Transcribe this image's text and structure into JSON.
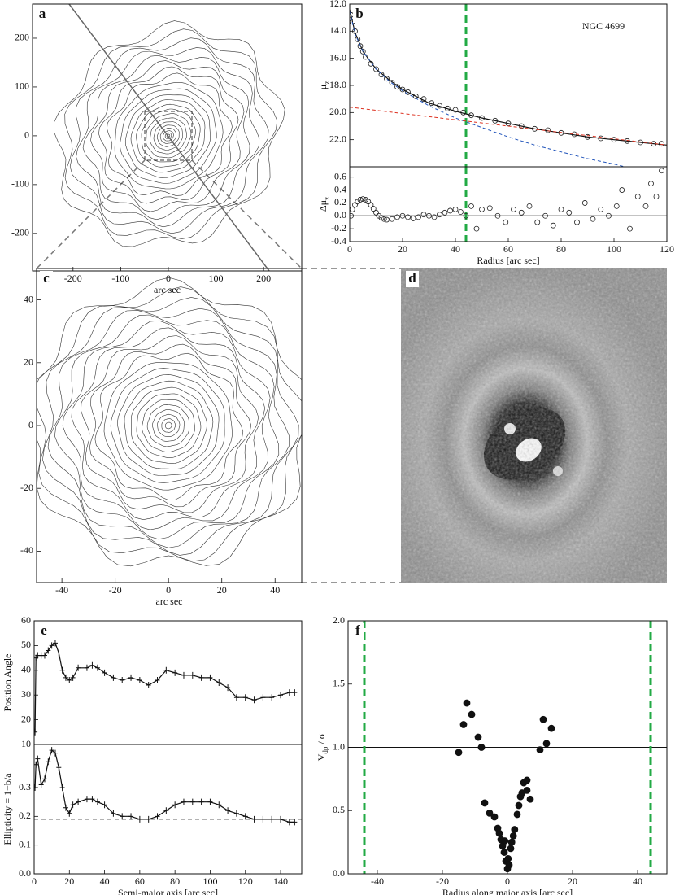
{
  "chart_data": [
    {
      "type": "contour",
      "label": "a",
      "xlabel": "arc sec",
      "xlim": [
        -285,
        280
      ],
      "ylim": [
        -277,
        270
      ],
      "xticks": [
        -200,
        -100,
        0,
        100,
        200
      ],
      "yticks": [
        -200,
        -100,
        0,
        100,
        200
      ]
    },
    {
      "type": "scatter",
      "label": "b",
      "annotation": "NGC 4699",
      "ylabel": [
        "μ",
        "z"
      ],
      "xlim": [
        0,
        120
      ],
      "ylim": [
        24,
        12
      ],
      "yticks": [
        {
          "value": 12,
          "label": "12.0"
        },
        {
          "value": 14,
          "label": "14.0"
        },
        {
          "value": 16,
          "label": "16.0"
        },
        {
          "value": 18,
          "label": "18.0"
        },
        {
          "value": 20,
          "label": "20.0"
        },
        {
          "value": 22,
          "label": "22.0"
        }
      ],
      "series": [
        {
          "marker": "circle-open",
          "color": "#222222",
          "x": [
            0.5,
            1,
            2,
            3,
            4,
            5,
            6,
            8,
            10,
            12,
            14,
            16,
            18,
            20,
            22,
            25,
            28,
            31,
            34,
            37,
            40,
            43,
            46,
            50,
            55,
            60,
            65,
            70,
            75,
            80,
            85,
            90,
            95,
            100,
            105,
            110,
            115,
            118
          ],
          "values": [
            12.8,
            13.3,
            14.0,
            14.6,
            15.1,
            15.5,
            15.9,
            16.4,
            16.8,
            17.2,
            17.5,
            17.8,
            18.1,
            18.3,
            18.5,
            18.8,
            19.0,
            19.3,
            19.5,
            19.7,
            19.8,
            20.0,
            20.2,
            20.4,
            20.6,
            20.8,
            21.0,
            21.2,
            21.3,
            21.5,
            21.6,
            21.8,
            21.9,
            22.0,
            22.1,
            22.2,
            22.3,
            22.3
          ]
        },
        {
          "line": "solid",
          "color": "#111111",
          "x": [
            0,
            2,
            5,
            10,
            15,
            20,
            30,
            40,
            50,
            60,
            70,
            80,
            90,
            100,
            110,
            120
          ],
          "values": [
            12.4,
            14.1,
            15.5,
            16.8,
            17.6,
            18.3,
            19.3,
            19.9,
            20.4,
            20.8,
            21.2,
            21.5,
            21.8,
            22.0,
            22.2,
            22.4
          ]
        },
        {
          "line": "dashed",
          "color": "#2255bb",
          "x": [
            0,
            2,
            5,
            10,
            15,
            20,
            30,
            40,
            50,
            60,
            70,
            80,
            90,
            100,
            104
          ],
          "values": [
            12.5,
            14.2,
            15.5,
            16.8,
            17.7,
            18.4,
            19.5,
            20.4,
            21.1,
            21.8,
            22.4,
            22.9,
            23.4,
            23.8,
            24.0
          ]
        },
        {
          "line": "dashed",
          "color": "#dd3322",
          "x": [
            0,
            120
          ],
          "values": [
            19.6,
            22.4
          ]
        }
      ],
      "vlines": [
        {
          "x": 44,
          "color": "#22aa44"
        }
      ]
    },
    {
      "type": "scatter",
      "ylabel": [
        "Δμ",
        "z"
      ],
      "xlabel": "Radius [arc sec]",
      "xlim": [
        0,
        120
      ],
      "ylim": [
        -0.4,
        0.76
      ],
      "xticks": [
        0,
        20,
        40,
        60,
        80,
        100,
        120
      ],
      "yticks": [
        -0.4,
        -0.2,
        {
          "value": 0,
          "label": "0.0"
        },
        0.2,
        0.4,
        0.6
      ],
      "series": [
        {
          "marker": "circle-open",
          "color": "#222222",
          "x": [
            0.5,
            1,
            2,
            3,
            4,
            5,
            6,
            7,
            8,
            9,
            10,
            11,
            12,
            13,
            14,
            16,
            18,
            20,
            22,
            24,
            26,
            28,
            30,
            32,
            34,
            36,
            38,
            40,
            42,
            44,
            46,
            48,
            50,
            53,
            56,
            59,
            62,
            65,
            68,
            71,
            74,
            77,
            80,
            83,
            86,
            89,
            92,
            95,
            98,
            101,
            103,
            106,
            109,
            112,
            114,
            116,
            118
          ],
          "values": [
            0.0,
            0.1,
            0.17,
            0.22,
            0.25,
            0.26,
            0.25,
            0.22,
            0.17,
            0.11,
            0.05,
            0.0,
            -0.03,
            -0.05,
            -0.06,
            -0.05,
            -0.02,
            0.0,
            -0.02,
            -0.04,
            -0.02,
            0.02,
            0.0,
            -0.02,
            0.02,
            0.05,
            0.08,
            0.1,
            0.06,
            0.0,
            0.15,
            -0.2,
            0.1,
            0.12,
            0.0,
            -0.1,
            0.1,
            0.05,
            0.15,
            -0.1,
            0.0,
            -0.15,
            0.1,
            0.05,
            -0.1,
            0.2,
            -0.05,
            0.1,
            0.0,
            0.15,
            0.4,
            -0.2,
            0.3,
            0.15,
            0.5,
            0.3,
            0.7
          ]
        }
      ],
      "hlines": [
        {
          "y": 0,
          "color": "#111111"
        }
      ],
      "vlines": [
        {
          "x": 44,
          "color": "#22aa44"
        }
      ]
    },
    {
      "type": "contour",
      "label": "c",
      "xlabel": "arc sec",
      "xlim": [
        -49.5,
        50
      ],
      "ylim": [
        -50,
        50
      ],
      "xticks": [
        -40,
        -20,
        0,
        20,
        40
      ],
      "yticks": [
        -40,
        -20,
        0,
        20,
        40
      ]
    },
    {
      "type": "image",
      "label": "d"
    },
    {
      "type": "scatter",
      "label": "e",
      "ylabel": [
        "Position Angle"
      ],
      "xlim": [
        0,
        152
      ],
      "ylim": [
        10,
        60
      ],
      "yticks": [
        10,
        20,
        30,
        40,
        50,
        60
      ],
      "series": [
        {
          "marker": "plus",
          "line": "solid",
          "color": "#111111",
          "x": [
            0.5,
            1,
            2,
            4,
            6,
            8,
            10,
            12,
            14,
            16,
            18,
            20,
            22,
            25,
            30,
            33,
            36,
            40,
            45,
            50,
            55,
            60,
            65,
            70,
            75,
            80,
            85,
            90,
            95,
            100,
            105,
            110,
            115,
            120,
            125,
            130,
            135,
            140,
            145,
            148
          ],
          "values": [
            15,
            45,
            46,
            46,
            46,
            48,
            50,
            51,
            47,
            40,
            37,
            36,
            37,
            41,
            41,
            42,
            41,
            39,
            37,
            36,
            37,
            36,
            34,
            36,
            40,
            39,
            38,
            38,
            37,
            37,
            35,
            33,
            29,
            29,
            28,
            29,
            29,
            30,
            31,
            31
          ]
        }
      ]
    },
    {
      "type": "scatter",
      "ylabel": [
        "Ellipticity = 1−b/a"
      ],
      "xlabel": "Semi-major axis [arc sec]",
      "xlim": [
        0,
        152
      ],
      "ylim": [
        0,
        0.45
      ],
      "xticks": [
        0,
        20,
        40,
        60,
        80,
        100,
        120,
        140
      ],
      "yticks": [
        {
          "value": 0,
          "label": "0.0"
        },
        0.1,
        0.2,
        0.3
      ],
      "series": [
        {
          "marker": "plus",
          "line": "solid",
          "color": "#111111",
          "x": [
            0.5,
            1,
            2,
            4,
            6,
            8,
            10,
            12,
            14,
            16,
            18,
            20,
            22,
            25,
            30,
            33,
            36,
            40,
            45,
            50,
            55,
            60,
            65,
            70,
            75,
            80,
            85,
            90,
            95,
            100,
            105,
            110,
            115,
            120,
            125,
            130,
            135,
            140,
            145,
            148
          ],
          "values": [
            0.3,
            0.38,
            0.4,
            0.31,
            0.33,
            0.39,
            0.43,
            0.42,
            0.37,
            0.3,
            0.23,
            0.21,
            0.24,
            0.25,
            0.26,
            0.26,
            0.25,
            0.24,
            0.21,
            0.2,
            0.2,
            0.19,
            0.19,
            0.2,
            0.22,
            0.24,
            0.25,
            0.25,
            0.25,
            0.25,
            0.24,
            0.22,
            0.21,
            0.2,
            0.19,
            0.19,
            0.19,
            0.19,
            0.18,
            0.18
          ]
        }
      ],
      "hlines": [
        {
          "y": 0.19,
          "color": "#333333",
          "style": "dashed"
        }
      ]
    },
    {
      "type": "scatter",
      "label": "f",
      "ylabel": [
        "V",
        "dp",
        " / σ"
      ],
      "xlabel": "Radius along major axis [arc sec]",
      "xlim": [
        -49,
        49
      ],
      "ylim": [
        0,
        2
      ],
      "xticks": [
        -40,
        -20,
        0,
        20,
        40
      ],
      "yticks": [
        {
          "value": 0,
          "label": "0.0"
        },
        0.5,
        {
          "value": 1,
          "label": "1.0"
        },
        1.5,
        {
          "value": 2,
          "label": "2.0"
        }
      ],
      "series": [
        {
          "marker": "dot",
          "color": "#111111",
          "x": [
            -15,
            -13.5,
            -12.5,
            -11,
            -9,
            -8,
            -7,
            -5.5,
            -4,
            -3,
            -2.5,
            -2,
            -1.5,
            -1,
            -0.8,
            -0.5,
            0,
            0.2,
            0.5,
            1,
            1.3,
            1.8,
            2.2,
            3,
            3.5,
            4,
            4.5,
            5,
            6,
            6,
            7,
            10,
            11,
            12,
            13.5
          ],
          "values": [
            0.96,
            1.18,
            1.35,
            1.26,
            1.08,
            1.0,
            0.56,
            0.48,
            0.45,
            0.36,
            0.32,
            0.27,
            0.22,
            0.17,
            0.26,
            0.1,
            0.04,
            0.12,
            0.07,
            0.2,
            0.25,
            0.3,
            0.35,
            0.47,
            0.54,
            0.61,
            0.64,
            0.72,
            0.74,
            0.66,
            0.59,
            0.98,
            1.22,
            1.03,
            1.15
          ]
        }
      ],
      "hlines": [
        {
          "y": 1,
          "color": "#111111"
        }
      ],
      "vlines": [
        {
          "x": -44,
          "color": "#22aa44"
        },
        {
          "x": 44,
          "color": "#22aa44"
        }
      ]
    }
  ]
}
